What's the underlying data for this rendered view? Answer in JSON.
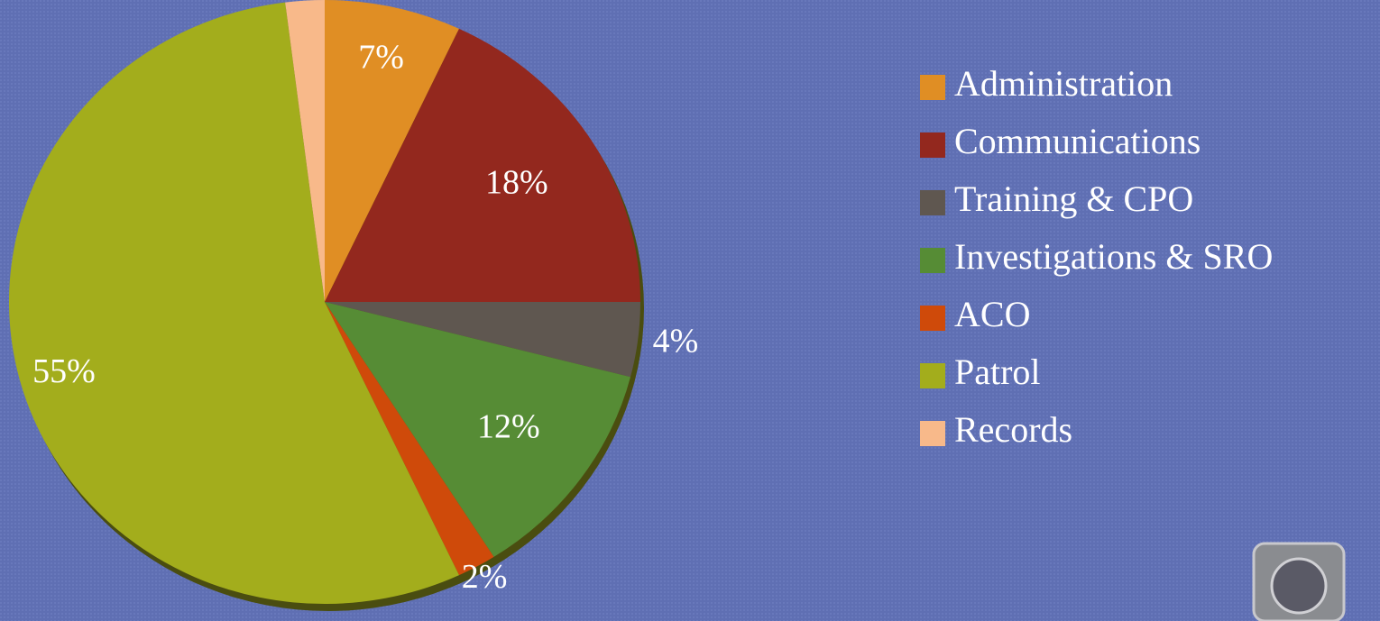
{
  "chart_data": {
    "type": "pie",
    "categories": [
      "Administration",
      "Communications",
      "Training & CPO",
      "Investigations & SRO",
      "ACO",
      "Patrol",
      "Records"
    ],
    "values": [
      7,
      18,
      4,
      12,
      2,
      55,
      2
    ],
    "value_labels": [
      "7%",
      "18%",
      "4%",
      "12%",
      "2%",
      "55%",
      null
    ],
    "colors": [
      "#e08e24",
      "#93281e",
      "#5f5750",
      "#568c35",
      "#cf4a0a",
      "#a3ad1c",
      "#f8b98a"
    ],
    "legend": "right"
  }
}
